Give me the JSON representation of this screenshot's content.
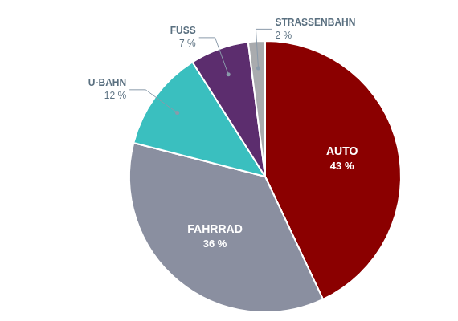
{
  "chart_data": {
    "type": "pie",
    "categories": [
      "AUTO",
      "FAHRRAD",
      "U-BAHN",
      "FUSS",
      "STRASSENBAHN"
    ],
    "values": [
      43,
      36,
      12,
      7,
      2
    ],
    "value_labels": [
      "43 %",
      "36 %",
      "12 %",
      "7 %",
      "2 %"
    ],
    "colors": [
      "#8B0000",
      "#8A8FA0",
      "#3ABFBF",
      "#5C2D6E",
      "#A9ABAE"
    ],
    "data_labels": true
  }
}
